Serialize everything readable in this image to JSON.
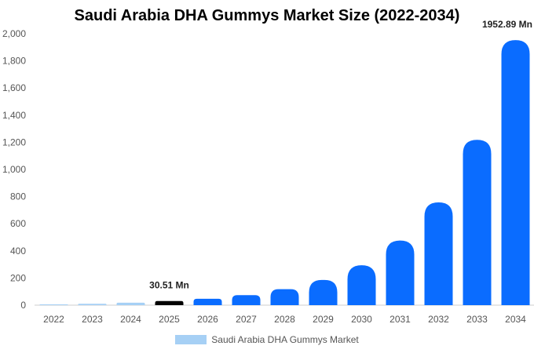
{
  "chart_data": {
    "type": "bar",
    "title": "Saudi Arabia DHA Gummys Market Size (2022-2034)",
    "xlabel": "",
    "ylabel": "",
    "categories": [
      "2022",
      "2023",
      "2024",
      "2025",
      "2026",
      "2027",
      "2028",
      "2029",
      "2030",
      "2031",
      "2032",
      "2033",
      "2034"
    ],
    "series": [
      {
        "name": "Saudi Arabia DHA Gummys Market",
        "values": [
          5,
          10,
          18,
          30.51,
          47,
          74,
          118,
          186,
          294,
          476,
          757,
          1218,
          1952.89
        ]
      }
    ],
    "ylim": [
      0,
      2000
    ],
    "yticks": [
      0,
      200,
      400,
      600,
      800,
      1000,
      1200,
      1400,
      1600,
      1800,
      2000
    ],
    "ytick_labels": [
      "0",
      "200",
      "400",
      "600",
      "800",
      "1,000",
      "1,200",
      "1,400",
      "1,600",
      "1,800",
      "2,000"
    ],
    "data_labels": [
      {
        "category": "2025",
        "text": "30.51 Mn"
      },
      {
        "category": "2034",
        "text": "1952.89 Mn"
      }
    ],
    "grid": false,
    "legend": "bottom-center",
    "colors": {
      "historical": "#a6d0f5",
      "base_year": "#000000",
      "forecast": "#0a6cff",
      "axis": "#cccccc"
    }
  }
}
